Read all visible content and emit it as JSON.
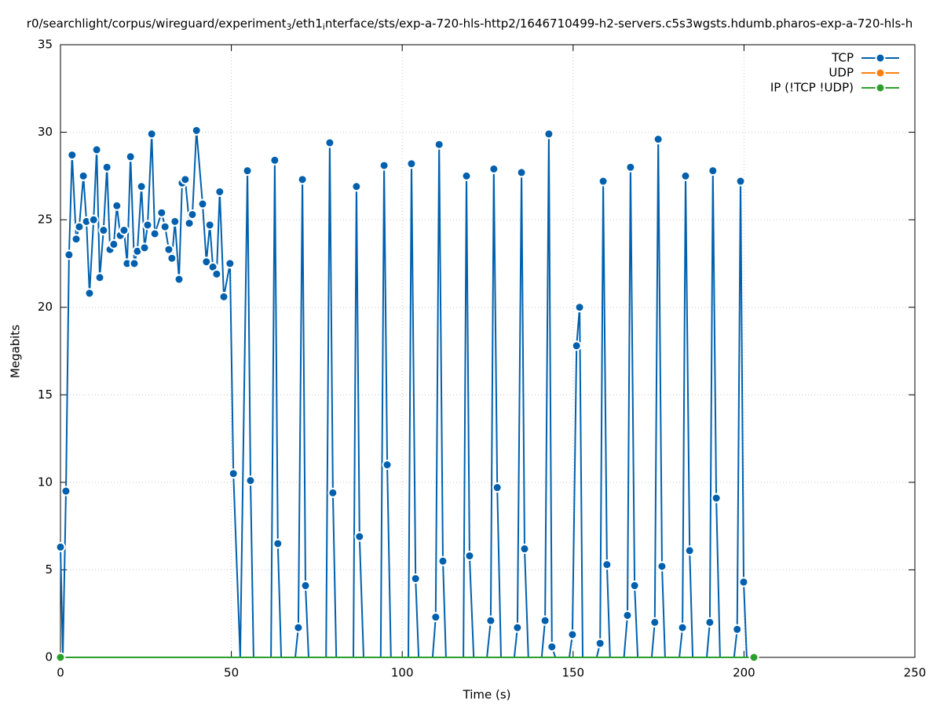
{
  "chart_data": {
    "type": "line",
    "title_parts": [
      "r0/searchlight/corpus/wireguard/experiment",
      "3",
      "/eth1",
      "i",
      "nterface/sts/exp-a-720-hls-http2/1646710499-h2-servers.c5s3wgsts.hdumb.pharos-exp-a-720-hls-h"
    ],
    "x_label": "Time (s)",
    "y_label": "Megabits",
    "xlim": [
      0,
      250
    ],
    "xticks": [
      0,
      50,
      100,
      150,
      200,
      250
    ],
    "ylim": [
      0,
      35
    ],
    "yticks": [
      0,
      5,
      10,
      15,
      20,
      25,
      30,
      35
    ],
    "grid": true,
    "legend": "top-right",
    "series": [
      {
        "name": "TCP",
        "color": "#0060ad",
        "x": [
          0.0,
          0.7,
          1.6,
          2.5,
          3.4,
          4.6,
          5.5,
          6.7,
          7.6,
          8.5,
          9.7,
          10.6,
          11.5,
          12.6,
          13.6,
          14.5,
          15.6,
          16.5,
          17.5,
          18.6,
          19.5,
          20.5,
          21.6,
          22.5,
          23.7,
          24.6,
          25.5,
          26.7,
          27.6,
          29.6,
          30.6,
          31.7,
          32.6,
          33.5,
          34.7,
          35.6,
          36.5,
          37.7,
          38.6,
          39.8,
          41.6,
          42.7,
          43.7,
          44.6,
          45.7,
          46.6,
          47.8,
          49.6,
          50.6,
          52.6,
          54.7,
          55.6,
          56.5,
          61.6,
          62.7,
          63.6,
          64.6,
          68.7,
          69.6,
          70.8,
          71.7,
          72.6,
          77.7,
          78.8,
          79.7,
          80.7,
          85.7,
          86.6,
          87.5,
          88.7,
          93.7,
          94.7,
          95.6,
          96.7,
          101.8,
          102.7,
          103.9,
          104.8,
          108.9,
          109.8,
          110.8,
          111.9,
          112.8,
          117.9,
          118.8,
          119.7,
          120.9,
          124.8,
          125.9,
          126.8,
          127.8,
          128.9,
          132.8,
          133.7,
          134.9,
          135.8,
          136.9,
          140.8,
          141.8,
          142.9,
          143.8,
          144.8,
          148.9,
          149.8,
          151.0,
          151.9,
          152.8,
          156.9,
          157.9,
          158.8,
          159.9,
          160.8,
          164.9,
          165.9,
          166.8,
          168.0,
          168.9,
          173.0,
          173.9,
          174.9,
          176.0,
          176.9,
          181.1,
          182.0,
          182.9,
          184.1,
          185.0,
          189.1,
          190.0,
          190.9,
          191.9,
          193.0,
          197.1,
          198.0,
          199.0,
          199.9,
          200.8
        ],
        "values": [
          6.3,
          0,
          9.5,
          23.0,
          28.7,
          23.9,
          24.6,
          27.5,
          24.9,
          20.8,
          25.0,
          29.0,
          21.7,
          24.4,
          28.0,
          23.3,
          23.6,
          25.8,
          24.1,
          24.4,
          22.5,
          28.6,
          22.5,
          23.2,
          26.9,
          23.4,
          24.7,
          29.9,
          24.2,
          25.4,
          24.6,
          23.3,
          22.8,
          24.9,
          21.6,
          27.1,
          27.3,
          24.8,
          25.3,
          30.1,
          25.9,
          22.6,
          24.7,
          22.3,
          21.9,
          26.6,
          20.6,
          22.5,
          10.5,
          0,
          27.8,
          10.1,
          0,
          0,
          28.4,
          6.5,
          0,
          0,
          1.7,
          27.3,
          4.1,
          0,
          0,
          29.4,
          9.4,
          0,
          0,
          26.9,
          6.9,
          0,
          0,
          28.1,
          11.0,
          0,
          0,
          28.2,
          4.5,
          0,
          0,
          2.3,
          29.3,
          5.5,
          0,
          0,
          27.5,
          5.8,
          0,
          0,
          2.1,
          27.9,
          9.7,
          0,
          0,
          1.7,
          27.7,
          6.2,
          0,
          0,
          2.1,
          29.9,
          0.6,
          0,
          0,
          1.3,
          17.8,
          20.0,
          0,
          0,
          0.8,
          27.2,
          5.3,
          0,
          0,
          2.4,
          28.0,
          4.1,
          0,
          0,
          2.0,
          29.6,
          5.2,
          0,
          0,
          1.7,
          27.5,
          6.1,
          0,
          0,
          2.0,
          27.8,
          9.1,
          0,
          0,
          1.6,
          27.2,
          4.3,
          0
        ]
      },
      {
        "name": "UDP",
        "color": "#ff7f0e",
        "x": [],
        "values": []
      },
      {
        "name": "IP (!TCP  !UDP)",
        "color": "#2ca02c",
        "x": [
          0,
          202.9
        ],
        "values": [
          0,
          0
        ]
      }
    ]
  }
}
